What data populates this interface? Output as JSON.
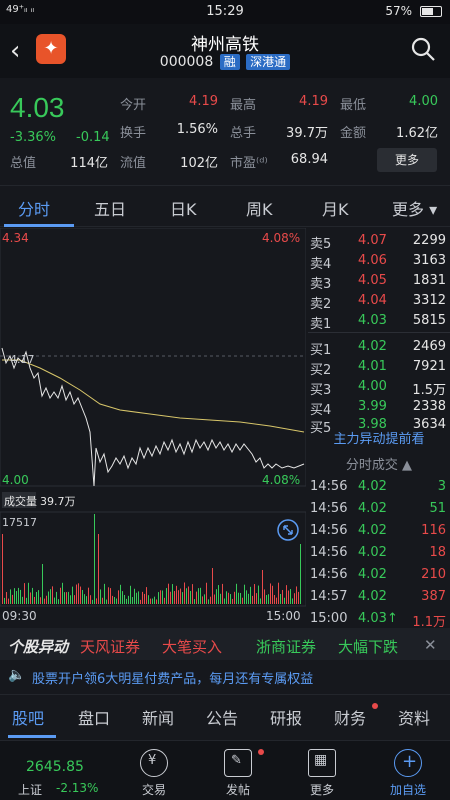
{
  "status": {
    "left": "49⁺ᵢₗ ᵢₗ",
    "time": "15:29",
    "battery": "57%"
  },
  "header": {
    "title": "神州高铁",
    "code": "000008",
    "tag1": "融",
    "tag2": "深港通"
  },
  "quote": {
    "price": "4.03",
    "change_pct": "-3.36%",
    "change_amt": "-0.14",
    "labels": {
      "open": "今开",
      "high": "最高",
      "low": "最低",
      "turnover": "换手",
      "volume": "总手",
      "amount": "金额",
      "mcap": "总值",
      "float": "流值",
      "pe": "市盈⁽ᵈ⁾"
    },
    "values": {
      "open": "4.19",
      "high": "4.19",
      "low": "4.00",
      "turnover": "1.56%",
      "volume": "39.7万",
      "amount": "1.62亿",
      "mcap": "114亿",
      "float": "102亿",
      "pe": "68.94"
    },
    "more": "更多"
  },
  "tabs": [
    "分时",
    "五日",
    "日K",
    "周K",
    "月K",
    "更多 ▾"
  ],
  "chart": {
    "y_top": "4.34",
    "y_top_pct": "4.08%",
    "y_bottom": "4.00",
    "y_bottom_pct": "4.08%",
    "mid_label": "4.17",
    "vol_label": "成交量",
    "vol_value": "39.7万",
    "vol_max": "17517",
    "x_start": "09:30",
    "x_end": "15:00"
  },
  "orderbook": {
    "asks": [
      {
        "label": "卖5",
        "price": "4.07",
        "vol": "2299"
      },
      {
        "label": "卖4",
        "price": "4.06",
        "vol": "3163"
      },
      {
        "label": "卖3",
        "price": "4.05",
        "vol": "1831"
      },
      {
        "label": "卖2",
        "price": "4.04",
        "vol": "3312"
      },
      {
        "label": "卖1",
        "price": "4.03",
        "vol": "5815"
      }
    ],
    "bids": [
      {
        "label": "买1",
        "price": "4.02",
        "vol": "2469"
      },
      {
        "label": "买2",
        "price": "4.01",
        "vol": "7921"
      },
      {
        "label": "买3",
        "price": "4.00",
        "vol": "1.5万"
      },
      {
        "label": "买4",
        "price": "3.99",
        "vol": "2338"
      },
      {
        "label": "买5",
        "price": "3.98",
        "vol": "3634"
      }
    ],
    "alert": "主力异动提前看",
    "ticks_header": "分时成交 ▲",
    "ticks": [
      {
        "time": "14:56",
        "price": "4.02",
        "vol": "3"
      },
      {
        "time": "14:56",
        "price": "4.02",
        "vol": "51"
      },
      {
        "time": "14:56",
        "price": "4.02",
        "vol": "116"
      },
      {
        "time": "14:56",
        "price": "4.02",
        "vol": "18"
      },
      {
        "time": "14:56",
        "price": "4.02",
        "vol": "210"
      },
      {
        "time": "14:57",
        "price": "4.02",
        "vol": "387"
      },
      {
        "time": "15:00",
        "price": "4.03↑",
        "vol": "1.1万"
      }
    ]
  },
  "marquee": {
    "a": "个股异动",
    "b": "天风证券",
    "c": "大笔买入",
    "d": "浙商证券",
    "e": "大幅下跌"
  },
  "notice": "股票开户领6大明星付费产品，每月还有专属权益",
  "bottom_tabs": [
    "股吧",
    "盘口",
    "新闻",
    "公告",
    "研报",
    "财务",
    "资料"
  ],
  "dock": {
    "index_value": "2645.85",
    "index_name": "上证",
    "index_pct": "-2.13%",
    "trade": "交易",
    "post": "发帖",
    "more": "更多",
    "add": "加自选"
  }
}
